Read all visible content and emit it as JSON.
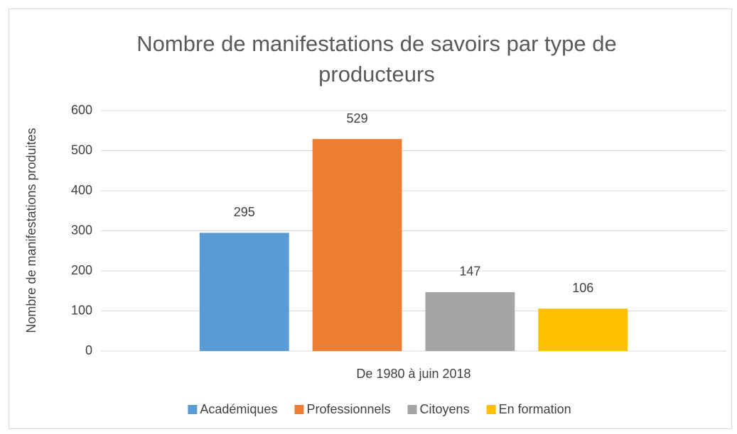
{
  "chart_data": {
    "type": "bar",
    "title": "Nombre de manifestations de savoirs par type de producteurs",
    "y_label": "Nombre de manifestations produites",
    "categories": [
      "De 1980 à juin 2018"
    ],
    "series": [
      {
        "name": "Académiques",
        "color": "#5b9bd5",
        "values": [
          295
        ]
      },
      {
        "name": "Professionnels",
        "color": "#ed7d31",
        "values": [
          529
        ]
      },
      {
        "name": "Citoyens",
        "color": "#a5a5a5",
        "values": [
          147
        ]
      },
      {
        "name": "En formation",
        "color": "#ffc000",
        "values": [
          106
        ]
      }
    ],
    "ylim": [
      0,
      600
    ],
    "yticks": [
      0,
      100,
      200,
      300,
      400,
      500,
      600
    ],
    "grid": true,
    "legend": "bottom"
  }
}
